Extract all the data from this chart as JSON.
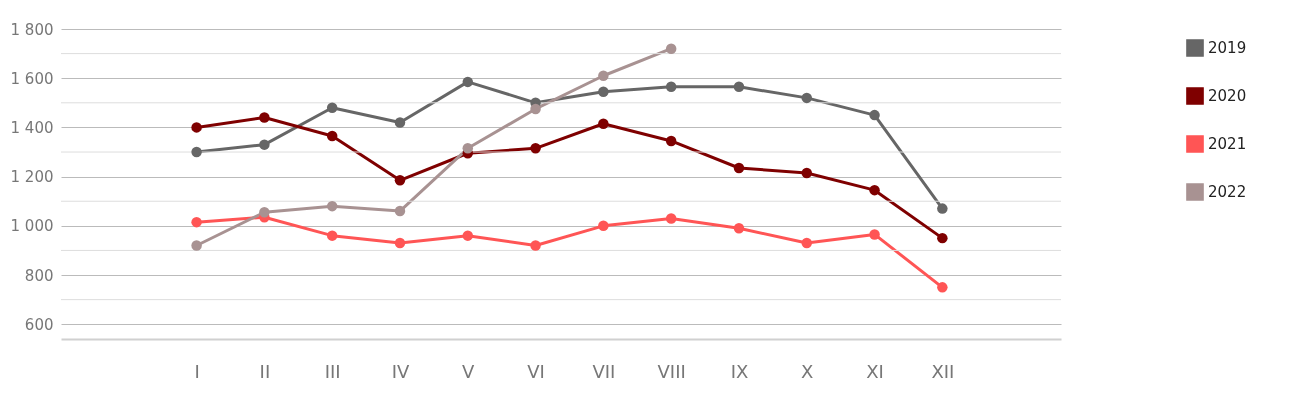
{
  "chart_data": {
    "type": "line",
    "categories": [
      "I",
      "II",
      "III",
      "IV",
      "V",
      "VI",
      "VII",
      "VIII",
      "IX",
      "X",
      "XI",
      "XII"
    ],
    "series": [
      {
        "name": "2019",
        "color": "#666666",
        "values": [
          1300,
          1330,
          1480,
          1420,
          1585,
          1500,
          1545,
          1565,
          1565,
          1520,
          1450,
          1070
        ]
      },
      {
        "name": "2020",
        "color": "#7f0000",
        "values": [
          1400,
          1440,
          1365,
          1185,
          1295,
          1315,
          1415,
          1345,
          1235,
          1215,
          1145,
          950
        ]
      },
      {
        "name": "2021",
        "color": "#ff5555",
        "values": [
          1015,
          1035,
          960,
          930,
          960,
          920,
          1000,
          1030,
          990,
          930,
          965,
          750
        ]
      },
      {
        "name": "2022",
        "color": "#a89292",
        "values": [
          920,
          1055,
          1080,
          1060,
          1315,
          1475,
          1610,
          1720,
          null,
          null,
          null,
          null
        ]
      }
    ],
    "ylim": [
      540,
      1800
    ],
    "yticks": [
      {
        "value": 600,
        "label": "600"
      },
      {
        "value": 700,
        "label": null
      },
      {
        "value": 800,
        "label": "800"
      },
      {
        "value": 900,
        "label": null
      },
      {
        "value": 1000,
        "label": "1 000"
      },
      {
        "value": 1100,
        "label": null
      },
      {
        "value": 1200,
        "label": "1 200"
      },
      {
        "value": 1300,
        "label": null
      },
      {
        "value": 1400,
        "label": "1 400"
      },
      {
        "value": 1500,
        "label": null
      },
      {
        "value": 1600,
        "label": "1 600"
      },
      {
        "value": 1700,
        "label": null
      },
      {
        "value": 1800,
        "label": "1 800"
      }
    ],
    "grid": "y",
    "legend": "right",
    "marker": "circle",
    "line_style": "solid"
  }
}
